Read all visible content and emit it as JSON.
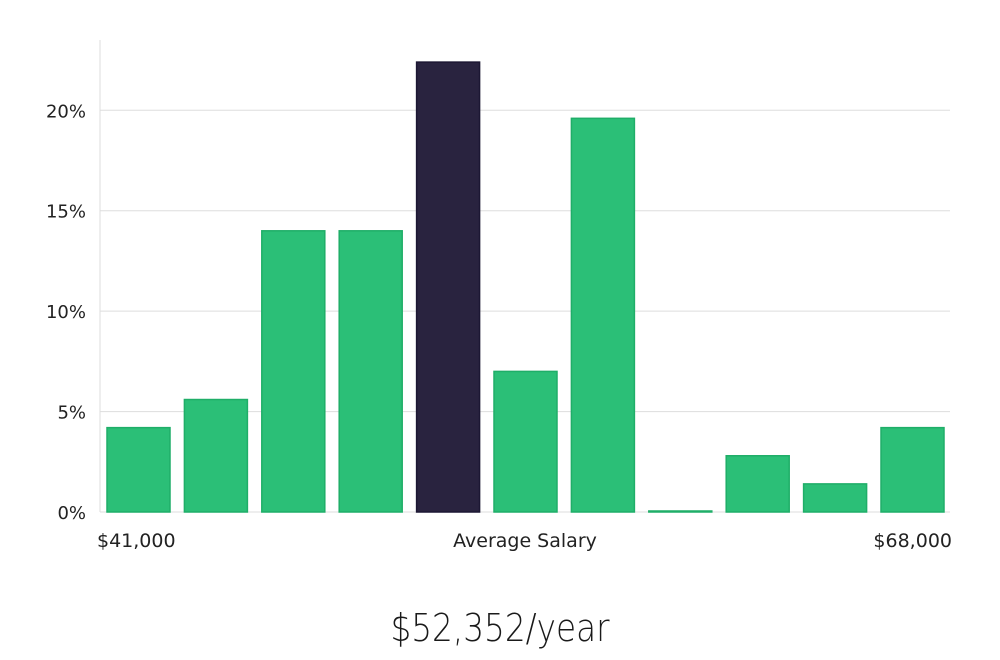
{
  "chart_data": {
    "type": "bar",
    "y_ticks": [
      "0%",
      "5%",
      "10%",
      "15%",
      "20%"
    ],
    "y_tick_values": [
      0,
      5,
      10,
      15,
      20
    ],
    "ylim": [
      0,
      23.5
    ],
    "grid": true,
    "values": [
      4.2,
      5.6,
      14.0,
      14.0,
      22.4,
      7.0,
      19.6,
      0.05,
      2.8,
      1.4,
      4.2
    ],
    "highlight_index": 4,
    "x_min_label": "$41,000",
    "xlabel": "Average Salary",
    "x_max_label": "$68,000",
    "colors": {
      "bar": "#2bbf77",
      "highlight": "#29233f",
      "bar_border": "#1fae68"
    }
  },
  "summary": {
    "salary": "$52,352/year"
  }
}
